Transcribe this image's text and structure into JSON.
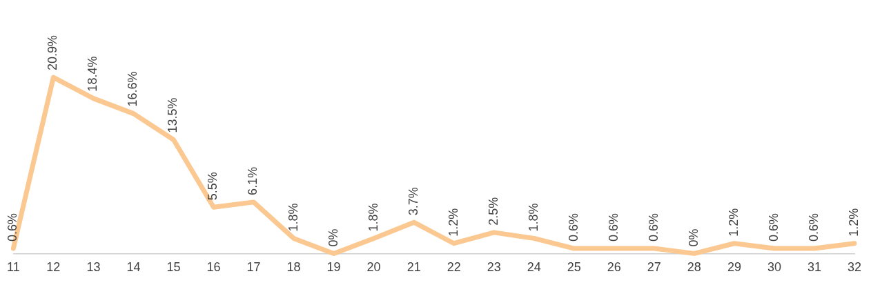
{
  "chart_data": {
    "type": "line",
    "categories": [
      "11",
      "12",
      "13",
      "14",
      "15",
      "16",
      "17",
      "18",
      "19",
      "20",
      "21",
      "22",
      "23",
      "24",
      "25",
      "26",
      "27",
      "28",
      "29",
      "30",
      "31",
      "32"
    ],
    "series": [
      {
        "color": "#fac890",
        "values": [
          0.6,
          20.9,
          18.4,
          16.6,
          13.5,
          5.5,
          6.1,
          1.8,
          0,
          1.8,
          3.7,
          1.2,
          2.5,
          1.8,
          0.6,
          0.6,
          0.6,
          0,
          1.2,
          0.6,
          0.6,
          1.2
        ],
        "value_labels": [
          "0.6%",
          "20.9%",
          "18.4%",
          "16.6%",
          "13.5%",
          "5.5%",
          "6.1%",
          "1.8%",
          "0%",
          "1.8%",
          "3.7%",
          "1.2%",
          "2.5%",
          "1.8%",
          "0.6%",
          "0.6%",
          "0.6%",
          "0%",
          "1.2%",
          "0.6%",
          "0.6%",
          "1.2%"
        ]
      }
    ],
    "grid": false,
    "legend": false,
    "marker": "none",
    "line_style": "solid"
  }
}
